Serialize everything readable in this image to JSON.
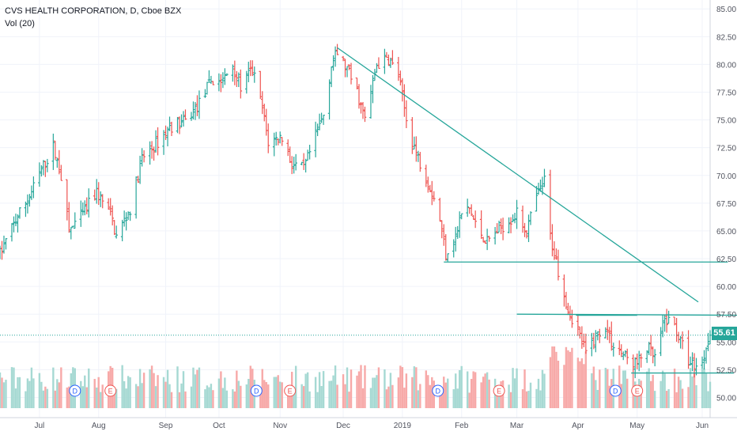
{
  "legend": {
    "symbol": "CVS HEALTH CORPORATION, D, Cboe BZX",
    "volume": "Vol (20)"
  },
  "colors": {
    "up": "#26a69a",
    "down": "#ef5350",
    "up_volume": "#a6d9d3",
    "down_volume": "#f7a9a8",
    "axis_text": "#50535e",
    "grid": "#f0f3fa",
    "drawing": "#26a69a"
  },
  "chart_data": {
    "type": "ohlc-bar",
    "title": "CVS HEALTH CORPORATION, D, Cboe BZX",
    "indicator": "Vol (20)",
    "last_price": "55.61",
    "ylim": [
      48.75,
      85.8
    ],
    "y_ticks": [
      50.0,
      52.5,
      55.0,
      57.5,
      60.0,
      62.5,
      65.0,
      67.5,
      70.0,
      72.5,
      75.0,
      77.5,
      80.0,
      82.5,
      85.0
    ],
    "y_tick_labels": [
      "50.00",
      "52.50",
      "55.00",
      "57.50",
      "60.00",
      "62.50",
      "65.00",
      "67.50",
      "70.00",
      "72.50",
      "75.00",
      "77.50",
      "80.00",
      "82.50",
      "85.00"
    ],
    "x_range": [
      "2018-06-12",
      "2019-06-07"
    ],
    "x_ticks": [
      {
        "label": "Jul",
        "date": "2018-07-02"
      },
      {
        "label": "Aug",
        "date": "2018-08-01"
      },
      {
        "label": "Sep",
        "date": "2018-09-04"
      },
      {
        "label": "Oct",
        "date": "2018-10-01"
      },
      {
        "label": "Nov",
        "date": "2018-11-01"
      },
      {
        "label": "Dec",
        "date": "2018-12-03"
      },
      {
        "label": "2019",
        "date": "2019-01-02"
      },
      {
        "label": "Feb",
        "date": "2019-02-01"
      },
      {
        "label": "Mar",
        "date": "2019-03-01"
      },
      {
        "label": "Apr",
        "date": "2019-04-01"
      },
      {
        "label": "May",
        "date": "2019-05-01"
      },
      {
        "label": "Jun",
        "date": "2019-06-03"
      }
    ],
    "price_path": [
      [
        "2018-06-12",
        62.9
      ],
      [
        "2018-06-20",
        66.0
      ],
      [
        "2018-06-28",
        68.5
      ],
      [
        "2018-07-03",
        70.5
      ],
      [
        "2018-07-09",
        72.5
      ],
      [
        "2018-07-13",
        70.0
      ],
      [
        "2018-07-17",
        65.0
      ],
      [
        "2018-07-24",
        66.5
      ],
      [
        "2018-07-31",
        68.5
      ],
      [
        "2018-08-07",
        66.5
      ],
      [
        "2018-08-10",
        64.5
      ],
      [
        "2018-08-17",
        67.0
      ],
      [
        "2018-08-23",
        71.5
      ],
      [
        "2018-08-31",
        73.0
      ],
      [
        "2018-09-07",
        74.5
      ],
      [
        "2018-09-14",
        74.8
      ],
      [
        "2018-09-21",
        76.5
      ],
      [
        "2018-09-27",
        78.5
      ],
      [
        "2018-10-03",
        78.5
      ],
      [
        "2018-10-08",
        80.0
      ],
      [
        "2018-10-12",
        78.0
      ],
      [
        "2018-10-18",
        79.5
      ],
      [
        "2018-10-23",
        76.0
      ],
      [
        "2018-10-26",
        73.0
      ],
      [
        "2018-11-02",
        73.5
      ],
      [
        "2018-11-07",
        71.0
      ],
      [
        "2018-11-13",
        70.5
      ],
      [
        "2018-11-19",
        73.5
      ],
      [
        "2018-11-23",
        75.5
      ],
      [
        "2018-11-27",
        80.0
      ],
      [
        "2018-11-30",
        81.0
      ],
      [
        "2018-12-05",
        79.5
      ],
      [
        "2018-12-10",
        77.5
      ],
      [
        "2018-12-14",
        75.0
      ],
      [
        "2018-12-20",
        80.0
      ],
      [
        "2018-12-26",
        80.5
      ],
      [
        "2018-12-31",
        79.0
      ],
      [
        "2019-01-04",
        75.0
      ],
      [
        "2019-01-09",
        72.0
      ],
      [
        "2019-01-15",
        69.5
      ],
      [
        "2019-01-20",
        67.0
      ],
      [
        "2019-01-24",
        63.0
      ],
      [
        "2019-01-29",
        64.5
      ],
      [
        "2019-02-01",
        66.5
      ],
      [
        "2019-02-05",
        67.0
      ],
      [
        "2019-02-08",
        65.5
      ],
      [
        "2019-02-14",
        64.0
      ],
      [
        "2019-02-19",
        65.0
      ],
      [
        "2019-02-25",
        66.0
      ],
      [
        "2019-03-01",
        66.5
      ],
      [
        "2019-03-06",
        65.0
      ],
      [
        "2019-03-11",
        68.0
      ],
      [
        "2019-03-15",
        69.5
      ],
      [
        "2019-03-18",
        64.5
      ],
      [
        "2019-03-22",
        61.5
      ],
      [
        "2019-03-27",
        58.0
      ],
      [
        "2019-04-01",
        56.0
      ],
      [
        "2019-04-05",
        54.0
      ],
      [
        "2019-04-10",
        55.5
      ],
      [
        "2019-04-15",
        56.5
      ],
      [
        "2019-04-18",
        55.0
      ],
      [
        "2019-04-23",
        54.0
      ],
      [
        "2019-04-26",
        53.5
      ],
      [
        "2019-05-01",
        53.0
      ],
      [
        "2019-05-06",
        54.5
      ],
      [
        "2019-05-10",
        53.5
      ],
      [
        "2019-05-15",
        57.0
      ],
      [
        "2019-05-20",
        56.5
      ],
      [
        "2019-05-23",
        55.0
      ],
      [
        "2019-05-28",
        53.0
      ],
      [
        "2019-06-03",
        53.0
      ],
      [
        "2019-06-06",
        55.61
      ]
    ],
    "volume_range": [
      0,
      1
    ],
    "event_markers": [
      {
        "label": "D",
        "date": "2018-07-20"
      },
      {
        "label": "E",
        "date": "2018-08-07"
      },
      {
        "label": "D",
        "date": "2018-10-20"
      },
      {
        "label": "E",
        "date": "2018-11-06"
      },
      {
        "label": "D",
        "date": "2019-01-20"
      },
      {
        "label": "E",
        "date": "2019-02-20"
      },
      {
        "label": "D",
        "date": "2019-04-20"
      },
      {
        "label": "E",
        "date": "2019-05-01"
      }
    ],
    "trendlines": [
      {
        "from": [
          "2018-11-30",
          81.5
        ],
        "to": [
          "2019-06-01",
          58.6
        ]
      },
      {
        "from": [
          "2019-01-23",
          62.2
        ],
        "to": [
          "2019-06-16",
          62.2
        ]
      },
      {
        "from": [
          "2019-03-01",
          57.5
        ],
        "to": [
          "2019-06-28",
          57.4
        ]
      },
      {
        "from": [
          "2019-03-31",
          57.4
        ],
        "to": [
          "2019-05-01",
          57.4
        ]
      },
      {
        "from": [
          "2019-04-28",
          52.2
        ],
        "to": [
          "2019-06-19",
          52.2
        ]
      }
    ]
  }
}
